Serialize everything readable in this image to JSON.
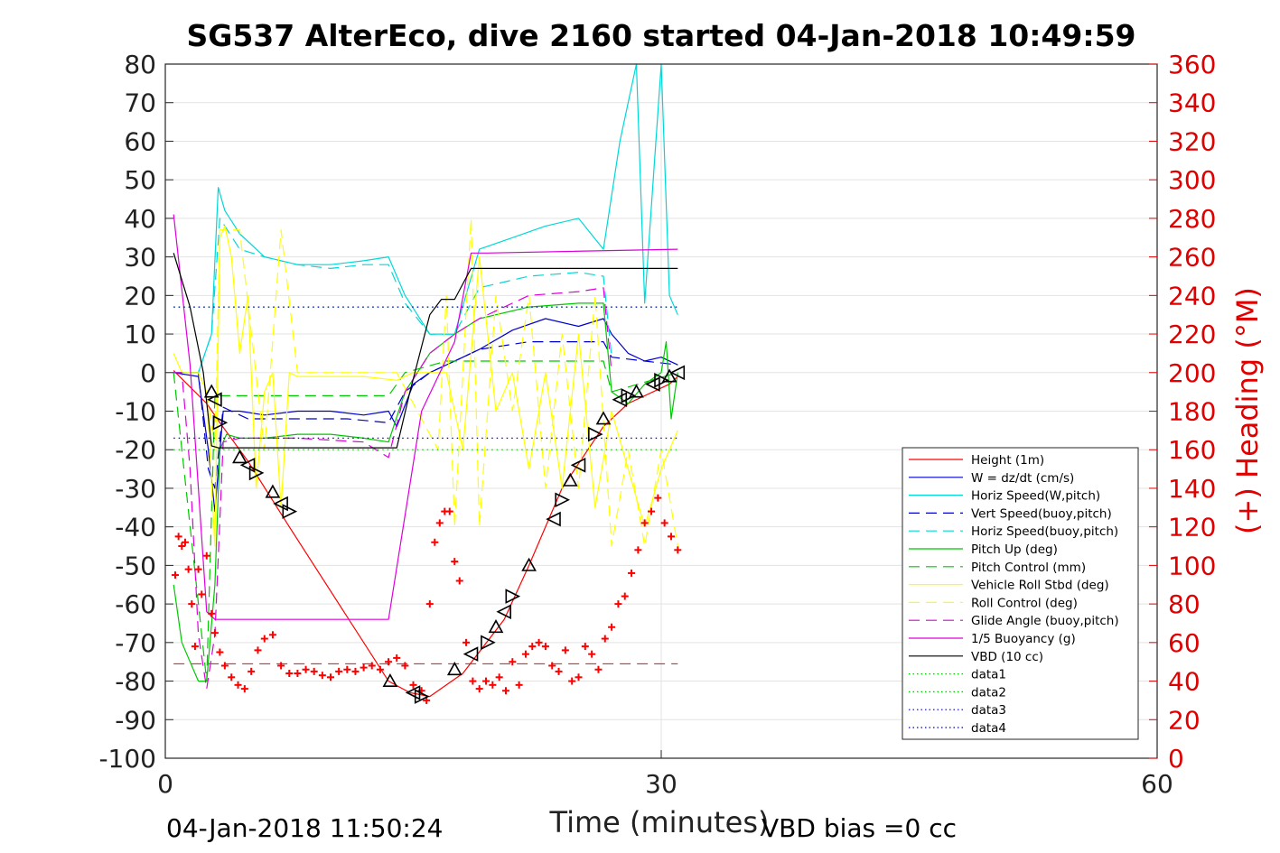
{
  "chart_data": {
    "type": "line",
    "title": "SG537 AlterEco, dive 2160 started 04-Jan-2018 10:49:59",
    "xlabel": "Time (minutes)",
    "ylabel_right": "(+) Heading (°M)",
    "xlim": [
      0,
      60
    ],
    "ylim_left": [
      -100,
      80
    ],
    "ylim_right": [
      0,
      360
    ],
    "x_ticks": [
      "0",
      "30",
      "60"
    ],
    "y_left_ticks": [
      "80",
      "70",
      "60",
      "50",
      "40",
      "30",
      "20",
      "10",
      "0",
      "-10",
      "-20",
      "-30",
      "-40",
      "-50",
      "-60",
      "-70",
      "-80",
      "-90",
      "-100"
    ],
    "y_right_ticks": [
      "360",
      "340",
      "320",
      "300",
      "280",
      "260",
      "240",
      "220",
      "200",
      "180",
      "160",
      "140",
      "120",
      "100",
      "80",
      "60",
      "40",
      "20",
      "0"
    ],
    "x_grid": [
      30
    ],
    "footer_left": "04-Jan-2018 11:50:24",
    "footer_right": "VBD bias =0 cc",
    "legend_position": "lower-right",
    "legend": [
      {
        "label": "Height (1m)",
        "color": "#ff0000",
        "dash": "solid"
      },
      {
        "label": "W = dz/dt (cm/s)",
        "color": "#0000cc",
        "dash": "solid"
      },
      {
        "label": "Horiz Speed(W,pitch)",
        "color": "#00d8d8",
        "dash": "solid"
      },
      {
        "label": "Vert Speed(buoy,pitch)",
        "color": "#0000cc",
        "dash": "dashed"
      },
      {
        "label": "Horiz Speed(buoy,pitch)",
        "color": "#00d8d8",
        "dash": "dashed"
      },
      {
        "label": "Pitch Up (deg)",
        "color": "#00c800",
        "dash": "solid"
      },
      {
        "label": "Pitch Control (mm)",
        "color": "#00c800",
        "dash": "dashed"
      },
      {
        "label": "Vehicle Roll Stbd (deg)",
        "color": "#ffff00",
        "dash": "solid"
      },
      {
        "label": "Roll Control (deg)",
        "color": "#ffff00",
        "dash": "dashed"
      },
      {
        "label": "Glide Angle (buoy,pitch)",
        "color": "#dd00dd",
        "dash": "dashed"
      },
      {
        "label": "1/5 Buoyancy (g)",
        "color": "#dd00dd",
        "dash": "solid"
      },
      {
        "label": "VBD (10 cc)",
        "color": "#000000",
        "dash": "solid"
      },
      {
        "label": "data1",
        "color": "#00c800",
        "dash": "dotted"
      },
      {
        "label": "data2",
        "color": "#00c800",
        "dash": "dotted"
      },
      {
        "label": "data3",
        "color": "#0000cc",
        "dash": "dotted"
      },
      {
        "label": "data4",
        "color": "#0000cc",
        "dash": "dotted"
      }
    ],
    "series": [
      {
        "name": "Height (1m)",
        "color": "#ff0000",
        "dash": "solid",
        "axis": "left",
        "x": [
          0.5,
          2.5,
          3.3,
          5.0,
          7.5,
          13.5,
          14.8,
          16.0,
          18.0,
          20.5,
          22.0,
          24.0,
          26.5,
          28.0,
          30.5,
          31.0
        ],
        "y": [
          0.5,
          -8,
          -13,
          -23,
          -40,
          -80,
          -83,
          -84,
          -78,
          -64,
          -50,
          -30,
          -14,
          -8,
          -3,
          -1
        ]
      },
      {
        "name": "W = dz/dt (cm/s)",
        "color": "#0000cc",
        "dash": "solid",
        "axis": "left",
        "x": [
          0.5,
          2.0,
          2.6,
          3.0,
          3.5,
          4.5,
          6,
          8,
          10,
          12,
          13.5,
          14,
          15,
          16,
          17.5,
          19,
          21,
          23,
          25,
          26.5,
          27,
          28,
          29,
          30,
          31
        ],
        "y": [
          0,
          -1,
          -20,
          -36,
          -10,
          -10,
          -11,
          -10,
          -10,
          -11,
          -10,
          -14,
          -3,
          0,
          3,
          6,
          11,
          14,
          12,
          14,
          10,
          5,
          3,
          4,
          2
        ]
      },
      {
        "name": "Horiz Speed(W,pitch)",
        "color": "#00d8d8",
        "dash": "solid",
        "axis": "left",
        "x": [
          0.5,
          2.0,
          2.8,
          3.2,
          3.6,
          4.5,
          6,
          8,
          10,
          12,
          13.5,
          14.5,
          16,
          17.5,
          19,
          21,
          23,
          25,
          26.5,
          27.5,
          28.5,
          29,
          30,
          30.5,
          31
        ],
        "y": [
          0,
          0,
          10,
          48,
          42,
          36,
          30,
          28,
          28,
          29,
          30,
          20,
          10,
          10,
          32,
          35,
          38,
          40,
          32,
          60,
          80,
          18,
          80,
          20,
          15
        ]
      },
      {
        "name": "Vert Speed(buoy,pitch)",
        "color": "#0000cc",
        "dash": "dashed",
        "axis": "left",
        "x": [
          0.5,
          2.0,
          2.6,
          3.0,
          3.5,
          5,
          8,
          11,
          13.5,
          14.5,
          16,
          17.5,
          19,
          22,
          25,
          26.5,
          27,
          29,
          31
        ],
        "y": [
          0,
          0,
          -25,
          -30,
          -9,
          -12,
          -12,
          -12,
          -13,
          -5,
          0,
          3,
          6,
          8,
          8,
          8,
          4,
          3,
          2
        ]
      },
      {
        "name": "Horiz Speed(buoy,pitch)",
        "color": "#00d8d8",
        "dash": "dashed",
        "axis": "left",
        "x": [
          0.5,
          2.0,
          2.8,
          3.3,
          4.5,
          6,
          8,
          10,
          12,
          13.5,
          14.5,
          16,
          17.5,
          19,
          22,
          25,
          26.5,
          27
        ],
        "y": [
          0,
          0,
          10,
          40,
          32,
          30,
          28,
          27,
          28,
          28,
          18,
          10,
          10,
          22,
          25,
          26,
          25,
          4
        ]
      },
      {
        "name": "Pitch Up (deg)",
        "color": "#00c800",
        "dash": "solid",
        "axis": "left",
        "x": [
          0.5,
          1.0,
          1.5,
          2.0,
          2.5,
          3.0,
          3.3,
          3.7,
          4.5,
          6,
          8,
          10,
          12,
          13.5,
          14.5,
          16,
          17.5,
          19,
          22,
          25,
          26.5,
          27,
          28,
          29,
          30,
          30.3,
          30.6,
          31
        ],
        "y": [
          -55,
          -70,
          -75,
          -80,
          -80,
          -55,
          -20,
          -16,
          -17,
          -17,
          -16,
          -16,
          -17,
          -18,
          -5,
          5,
          10,
          14,
          17,
          18,
          18,
          -5,
          -8,
          -3,
          0,
          8,
          -12,
          0
        ]
      },
      {
        "name": "Pitch Control (mm)",
        "color": "#00c800",
        "dash": "dashed",
        "axis": "left",
        "x": [
          0.5,
          2.5,
          3.0,
          13.5,
          14.5,
          17,
          26.5,
          27,
          31
        ],
        "y": [
          0,
          -80,
          -6,
          -6,
          0,
          3,
          3,
          -5,
          0
        ]
      },
      {
        "name": "Vehicle Roll Stbd (deg)",
        "color": "#ffff00",
        "dash": "solid",
        "axis": "left",
        "x": [
          0.5,
          1.0,
          2.0,
          2.5,
          3.0,
          3.3,
          3.6,
          4.0,
          4.5,
          5.0,
          5.5,
          6.0,
          6.5,
          7.0,
          7.5,
          8,
          10,
          12,
          14,
          15,
          17,
          18,
          19,
          20,
          21,
          22,
          23,
          24,
          25,
          26,
          27,
          28,
          29,
          30,
          31
        ],
        "y": [
          5,
          0,
          0,
          -5,
          -45,
          35,
          38,
          30,
          5,
          20,
          -30,
          -5,
          0,
          -35,
          0,
          -1,
          -1,
          -1,
          -2,
          0,
          0,
          -20,
          30,
          -10,
          0,
          -25,
          0,
          -30,
          10,
          -35,
          -10,
          -25,
          -40,
          -25,
          -15
        ]
      },
      {
        "name": "Roll Control (deg)",
        "color": "#ffff00",
        "dash": "dashed",
        "axis": "left",
        "x": [
          2.5,
          3.0,
          3.3,
          4.5,
          6,
          7.0,
          8,
          14,
          16.5,
          17,
          17.5,
          18.5,
          19,
          20,
          21,
          22,
          23,
          24,
          25,
          26,
          27,
          28,
          29,
          30,
          31
        ],
        "y": [
          -5,
          -20,
          37,
          37,
          -20,
          37,
          0,
          0,
          -20,
          20,
          -40,
          40,
          -40,
          20,
          -10,
          20,
          -30,
          10,
          -30,
          20,
          -45,
          -20,
          -45,
          -20,
          -45
        ]
      },
      {
        "name": "Glide Angle (buoy,pitch)",
        "color": "#dd00dd",
        "dash": "dashed",
        "axis": "left",
        "x": [
          0.5,
          1.0,
          1.5,
          2.0,
          2.5,
          3.0,
          3.5,
          4.5,
          8,
          12,
          13.5,
          14.5,
          16,
          17.5,
          19,
          22,
          25,
          26.5,
          27
        ],
        "y": [
          0,
          0,
          -25,
          -68,
          -82,
          -68,
          -18,
          -17,
          -17,
          -18,
          -22,
          -5,
          5,
          10,
          14,
          20,
          21,
          22,
          0
        ]
      },
      {
        "name": "1/5 Buoyancy (g)",
        "color": "#dd00dd",
        "dash": "solid",
        "axis": "left",
        "x": [
          0.5,
          1.5,
          2.5,
          3.0,
          3.2,
          13.5,
          15.5,
          17.5,
          18.5,
          19.5,
          31
        ],
        "y": [
          41,
          2,
          -62,
          -64,
          -64,
          -64,
          -10,
          8,
          31,
          31,
          32
        ]
      },
      {
        "name": "VBD (10 cc)",
        "color": "#000000",
        "dash": "solid",
        "axis": "left",
        "x": [
          0.5,
          1.5,
          2.3,
          2.8,
          3.2,
          14,
          14.8,
          16.0,
          16.7,
          17.5,
          18.5,
          31
        ],
        "y": [
          31,
          17,
          0,
          -19,
          -19.5,
          -19.5,
          -5,
          15,
          19,
          19,
          27,
          27
        ]
      },
      {
        "name": "data1",
        "color": "#00c800",
        "dash": "dotted",
        "axis": "left",
        "x": [
          0.5,
          31
        ],
        "y": [
          -20,
          -20
        ]
      },
      {
        "name": "data2",
        "color": "#00c800",
        "dash": "dotted",
        "axis": "left",
        "x": [
          0.5,
          31
        ],
        "y": [
          17,
          17
        ]
      },
      {
        "name": "data3",
        "color": "#0000cc",
        "dash": "dotted",
        "axis": "left",
        "x": [
          0.5,
          31
        ],
        "y": [
          -17,
          -17
        ]
      },
      {
        "name": "data4",
        "color": "#0000cc",
        "dash": "dotted",
        "axis": "left",
        "x": [
          0.5,
          31
        ],
        "y": [
          17,
          17
        ]
      }
    ],
    "reference_lines": [
      {
        "color": "#ff0000",
        "dash": "dashed",
        "axis": "left",
        "y": -75.5,
        "x": [
          0.5,
          31
        ]
      }
    ],
    "heading_points": {
      "color": "#ff0000",
      "marker": "+",
      "axis": "right",
      "x": [
        0.6,
        0.8,
        1.0,
        1.2,
        1.4,
        1.6,
        1.8,
        2.0,
        2.2,
        2.5,
        2.8,
        3.0,
        3.3,
        3.6,
        4.0,
        4.4,
        4.8,
        5.2,
        5.6,
        6.0,
        6.5,
        7.0,
        7.5,
        8.0,
        8.5,
        9.0,
        9.5,
        10.0,
        10.5,
        11.0,
        11.5,
        12.0,
        12.5,
        13.0,
        13.5,
        14.0,
        14.5,
        15.0,
        15.5,
        15.8,
        16.0,
        16.3,
        16.6,
        16.9,
        17.2,
        17.5,
        17.8,
        18.2,
        18.6,
        19.0,
        19.4,
        19.8,
        20.2,
        20.6,
        21.0,
        21.4,
        21.8,
        22.2,
        22.6,
        23.0,
        23.4,
        23.8,
        24.2,
        24.6,
        25.0,
        25.4,
        25.8,
        26.2,
        26.6,
        27.0,
        27.4,
        27.8,
        28.2,
        28.6,
        29.0,
        29.4,
        29.8,
        30.2,
        30.6,
        31.0
      ],
      "y": [
        95,
        115,
        110,
        112,
        98,
        80,
        58,
        98,
        85,
        105,
        75,
        65,
        55,
        48,
        42,
        38,
        36,
        45,
        56,
        62,
        64,
        48,
        44,
        44,
        46,
        45,
        43,
        42,
        45,
        46,
        45,
        47,
        48,
        46,
        50,
        52,
        48,
        38,
        35,
        30,
        80,
        112,
        122,
        128,
        128,
        102,
        92,
        60,
        40,
        36,
        40,
        38,
        42,
        35,
        50,
        38,
        54,
        58,
        60,
        58,
        48,
        45,
        56,
        40,
        42,
        58,
        54,
        46,
        62,
        68,
        80,
        84,
        96,
        108,
        122,
        128,
        135,
        122,
        115,
        108
      ]
    },
    "depth_markers": {
      "color": "#000000",
      "marker": "triangle",
      "axis": "left",
      "x": [
        2.8,
        3.0,
        3.3,
        4.5,
        5.0,
        5.5,
        6.5,
        7.0,
        7.5,
        13.6,
        15.0,
        15.5,
        17.5,
        18.5,
        19.5,
        20.0,
        20.5,
        21.0,
        22.0,
        23.5,
        24.0,
        24.5,
        25.0,
        26.0,
        26.5,
        27.5,
        28.0,
        28.5,
        29.5,
        30.0,
        30.5,
        31.0
      ],
      "y": [
        -5,
        -7,
        -13,
        -22,
        -24,
        -26,
        -31,
        -34,
        -36,
        -80,
        -83,
        -84,
        -77,
        -73,
        -70,
        -66,
        -62,
        -58,
        -50,
        -38,
        -33,
        -28,
        -24,
        -16,
        -12,
        -7,
        -6,
        -5,
        -3,
        -2,
        -1,
        0
      ]
    }
  }
}
